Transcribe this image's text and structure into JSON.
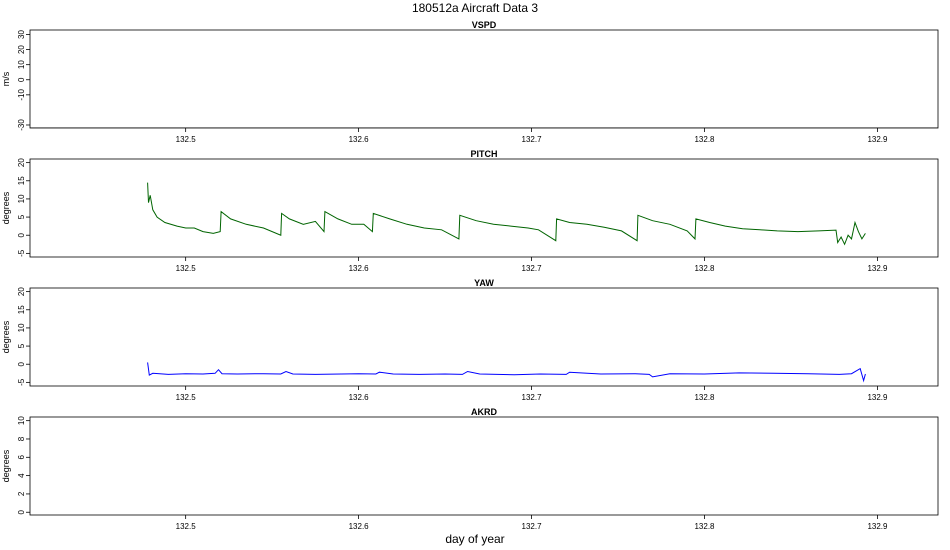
{
  "figure": {
    "title": "180512a   Aircraft Data 3",
    "xlabel": "day of year"
  },
  "chart_data": [
    {
      "type": "line",
      "title": "VSPD",
      "ylabel": "m/s",
      "xlim": [
        132.41,
        132.935
      ],
      "ylim": [
        -32,
        33
      ],
      "yticks": [
        30,
        20,
        10,
        0,
        -10,
        -30
      ],
      "xticks": [
        132.5,
        132.6,
        132.7,
        132.8,
        132.9
      ],
      "color": "#000000",
      "x": [
        132.41,
        132.935
      ],
      "y": [
        -32,
        -32
      ]
    },
    {
      "type": "line",
      "title": "PITCH",
      "ylabel": "degrees",
      "xlim": [
        132.41,
        132.935
      ],
      "ylim": [
        -6,
        21
      ],
      "yticks": [
        20,
        15,
        10,
        5,
        0,
        -5
      ],
      "xticks": [
        132.5,
        132.6,
        132.7,
        132.8,
        132.9
      ],
      "color": "#006400",
      "x": [
        132.478,
        132.4785,
        132.4795,
        132.481,
        132.4835,
        132.488,
        132.495,
        132.5,
        132.505,
        132.51,
        132.516,
        132.52,
        132.5205,
        132.526,
        132.535,
        132.545,
        132.555,
        132.5555,
        132.56,
        132.568,
        132.575,
        132.58,
        132.5805,
        132.588,
        132.596,
        132.603,
        132.608,
        132.6085,
        132.618,
        132.628,
        132.638,
        132.648,
        132.658,
        132.6585,
        132.668,
        132.678,
        132.688,
        132.698,
        132.704,
        132.714,
        132.7145,
        132.722,
        132.732,
        132.742,
        132.752,
        132.761,
        132.7615,
        132.77,
        132.78,
        132.79,
        132.7945,
        132.795,
        132.803,
        132.812,
        132.822,
        132.832,
        132.842,
        132.854,
        132.866,
        132.876,
        132.877,
        132.879,
        132.881,
        132.883,
        132.885,
        132.887,
        132.889,
        132.891,
        132.893
      ],
      "y": [
        14.5,
        9,
        11,
        7,
        5,
        3.5,
        2.5,
        2,
        2,
        1,
        0.5,
        1,
        6.5,
        4.5,
        3,
        2,
        0,
        6,
        4.5,
        3,
        3.8,
        1,
        6.5,
        4.5,
        3,
        3,
        1,
        6,
        4.5,
        3,
        2,
        1.5,
        -1,
        5.5,
        4,
        3,
        2.5,
        2,
        1.5,
        -1.5,
        4.5,
        3.5,
        3,
        2.2,
        1.2,
        -1.5,
        5.5,
        4,
        3,
        1.2,
        -1,
        4.5,
        3.5,
        2.5,
        1.8,
        1.5,
        1.2,
        1,
        1.2,
        1.4,
        -2,
        -0.5,
        -2.5,
        0,
        -1,
        3.5,
        1,
        -1,
        0.5
      ]
    },
    {
      "type": "line",
      "title": "YAW",
      "ylabel": "degrees",
      "xlim": [
        132.41,
        132.935
      ],
      "ylim": [
        -6,
        21
      ],
      "yticks": [
        20,
        15,
        10,
        5,
        0,
        -5
      ],
      "xticks": [
        132.5,
        132.6,
        132.7,
        132.8,
        132.9
      ],
      "color": "#0000FF",
      "x": [
        132.478,
        132.479,
        132.481,
        132.49,
        132.5,
        132.51,
        132.517,
        132.519,
        132.521,
        132.53,
        132.545,
        132.555,
        132.558,
        132.562,
        132.575,
        132.59,
        132.6,
        132.61,
        132.612,
        132.62,
        132.635,
        132.65,
        132.66,
        132.663,
        132.67,
        132.69,
        132.705,
        132.72,
        132.722,
        132.74,
        132.76,
        132.768,
        132.77,
        132.78,
        132.8,
        132.82,
        132.84,
        132.86,
        132.878,
        132.885,
        132.89,
        132.892,
        132.893
      ],
      "y": [
        0.5,
        -3,
        -2.5,
        -2.8,
        -2.6,
        -2.7,
        -2.5,
        -1.5,
        -2.6,
        -2.7,
        -2.6,
        -2.7,
        -2,
        -2.7,
        -2.8,
        -2.7,
        -2.6,
        -2.7,
        -2.2,
        -2.7,
        -2.8,
        -2.7,
        -2.8,
        -2,
        -2.7,
        -2.9,
        -2.7,
        -2.8,
        -2.2,
        -2.7,
        -2.6,
        -2.8,
        -3.5,
        -2.6,
        -2.7,
        -2.4,
        -2.5,
        -2.6,
        -2.8,
        -2.6,
        -1.2,
        -4.5,
        -2.7
      ]
    },
    {
      "type": "line",
      "title": "AKRD",
      "ylabel": "degrees",
      "xlim": [
        132.41,
        132.935
      ],
      "ylim": [
        -0.3,
        10.4
      ],
      "yticks": [
        10,
        8,
        6,
        4,
        2,
        0
      ],
      "xticks": [
        132.5,
        132.6,
        132.7,
        132.8,
        132.9
      ],
      "color": "#000000",
      "x": [],
      "y": []
    }
  ]
}
